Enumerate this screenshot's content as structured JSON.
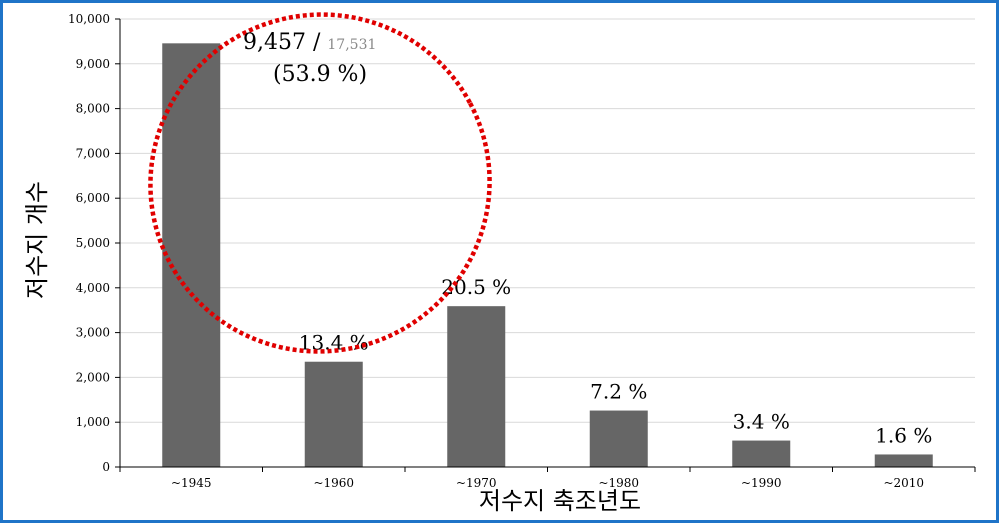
{
  "chart_data": {
    "type": "bar",
    "categories": [
      "~1945",
      "~1960",
      "~1970",
      "~1980",
      "~1990",
      "~2010"
    ],
    "values": [
      9457,
      2350,
      3590,
      1260,
      590,
      280
    ],
    "data_labels": [
      "",
      "13.4 %",
      "20.5 %",
      "7.2 %",
      "3.4 %",
      "1.6 %"
    ],
    "xlabel": "저수지 축조년도",
    "ylabel": "저수지 개수",
    "ylim": [
      0,
      10000
    ],
    "yticks": [
      0,
      1000,
      2000,
      3000,
      4000,
      5000,
      6000,
      7000,
      8000,
      9000,
      10000
    ],
    "ytick_labels": [
      "0",
      "1,000",
      "2,000",
      "3,000",
      "4,000",
      "5,000",
      "6,000",
      "7,000",
      "8,000",
      "9,000",
      "10,000"
    ],
    "grid": true,
    "bar_color": "#666666",
    "callout": {
      "value_text": "9,457 / ",
      "total_text": "17,531",
      "percent_text": "(53.9 %)",
      "circle_color": "#e00000"
    }
  }
}
